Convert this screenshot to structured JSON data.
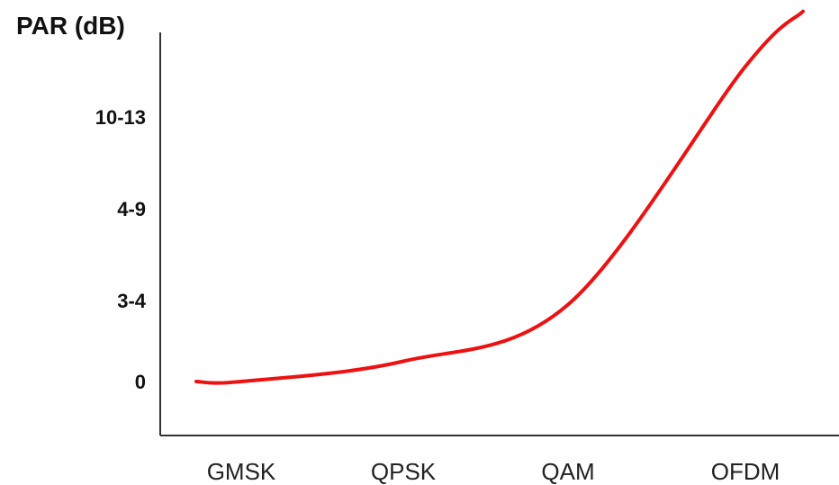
{
  "chart_data": {
    "type": "line",
    "title": "",
    "xlabel": "",
    "ylabel": "PAR (dB)",
    "categories": [
      "GMSK",
      "QPSK",
      "QAM",
      "OFDM"
    ],
    "y_tick_labels": [
      "0",
      "3-4",
      "4-9",
      "10-13"
    ],
    "y_scale": "ordinal (non-linear tick spacing)",
    "grid": false,
    "legend": "none",
    "series": [
      {
        "color": "#ee1111",
        "points": [
          {
            "x": "GMSK",
            "y_level": 0.0
          },
          {
            "x": "QPSK",
            "y_level": 0.25
          },
          {
            "x": "QAM",
            "y_level": 0.95
          },
          {
            "x": "OFDM",
            "y_level": 3.55
          }
        ]
      }
    ]
  }
}
